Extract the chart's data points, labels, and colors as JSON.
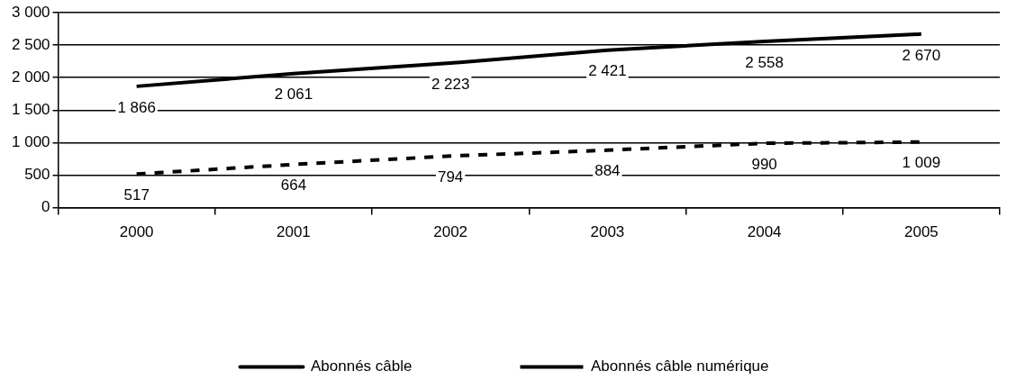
{
  "chart_data": {
    "type": "line",
    "categories": [
      "2000",
      "2001",
      "2002",
      "2003",
      "2004",
      "2005"
    ],
    "series": [
      {
        "name": "Abonnés câble",
        "color": "#000000",
        "line_style": "solid",
        "values": [
          1866,
          2061,
          2223,
          2421,
          2558,
          2670
        ],
        "value_labels": [
          "1 866",
          "2 061",
          "2 223",
          "2 421",
          "2 558",
          "2 670"
        ]
      },
      {
        "name": "Abonnés câble numérique",
        "color": "#000000",
        "line_style": "dashed",
        "values": [
          517,
          664,
          794,
          884,
          990,
          1009
        ],
        "value_labels": [
          "517",
          "664",
          "794",
          "884",
          "990",
          "1 009"
        ]
      }
    ],
    "ylim": [
      0,
      3000
    ],
    "yticks": [
      {
        "value": 0,
        "label": "0"
      },
      {
        "value": 500,
        "label": "500"
      },
      {
        "value": 1000,
        "label": "1 000"
      },
      {
        "value": 1500,
        "label": "1 500"
      },
      {
        "value": 2000,
        "label": "2 000"
      },
      {
        "value": 2500,
        "label": "2 500"
      },
      {
        "value": 3000,
        "label": "3 000"
      }
    ],
    "grid": "y",
    "legend": "bottom",
    "marker": "none"
  }
}
